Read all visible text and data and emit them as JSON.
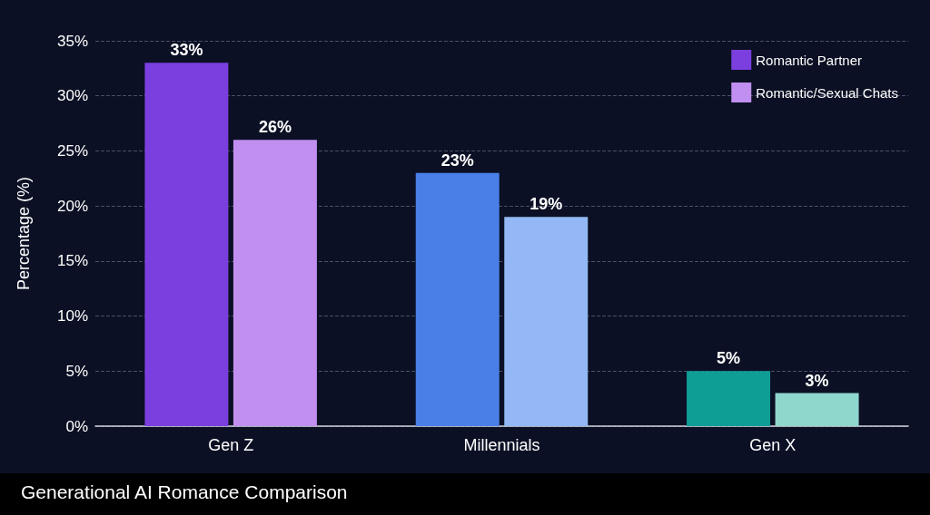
{
  "chart_data": {
    "type": "bar",
    "title": "Generational AI Romance Comparison",
    "ylabel": "Percentage (%)",
    "categories": [
      "Gen Z",
      "Millennials",
      "Gen X"
    ],
    "series": [
      {
        "name": "Romantic Partner",
        "color": "#7b3fe0",
        "colors": [
          "#7b3fe0",
          "#4a7fe8",
          "#0f9e96"
        ],
        "values": [
          33,
          23,
          5
        ],
        "value_labels": [
          "33%",
          "23%",
          "5%"
        ]
      },
      {
        "name": "Romantic/Sexual Chats",
        "color": "#c18ff0",
        "colors": [
          "#c18ff0",
          "#93b8f5",
          "#8fd6cc"
        ],
        "values": [
          26,
          19,
          3
        ],
        "value_labels": [
          "26%",
          "19%",
          "3%"
        ]
      }
    ],
    "ylim": [
      0,
      35
    ],
    "yticks": [
      {
        "value": 0,
        "label": "0%"
      },
      {
        "value": 5,
        "label": "5%"
      },
      {
        "value": 10,
        "label": "10%"
      },
      {
        "value": 15,
        "label": "15%"
      },
      {
        "value": 20,
        "label": "20%"
      },
      {
        "value": 25,
        "label": "25%"
      },
      {
        "value": 30,
        "label": "30%"
      },
      {
        "value": 35,
        "label": "35%"
      }
    ],
    "grid": "y",
    "legend": "top right"
  }
}
